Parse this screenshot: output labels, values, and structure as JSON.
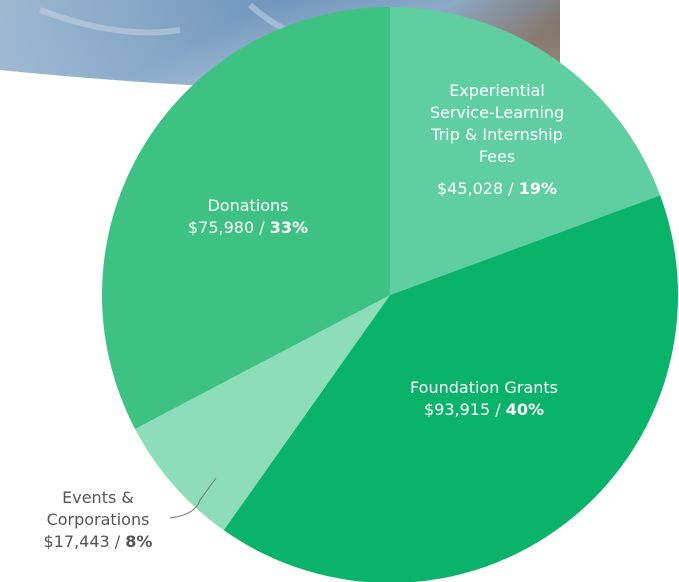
{
  "chart_data": {
    "type": "pie",
    "categories": [
      "Experiential Service-Learning Trip & Internship Fees",
      "Foundation Grants",
      "Events & Corporations",
      "Donations"
    ],
    "values": [
      45028,
      93915,
      17443,
      75980
    ],
    "value_labels": [
      "$45,028",
      "$93,915",
      "$17,443",
      "$75,980"
    ],
    "percent_labels": [
      "19%",
      "40%",
      "8%",
      "33%"
    ],
    "separator": "/",
    "colors": [
      "#5fcfa1",
      "#0ab36a",
      "#8ddcba",
      "#3dc284"
    ]
  }
}
